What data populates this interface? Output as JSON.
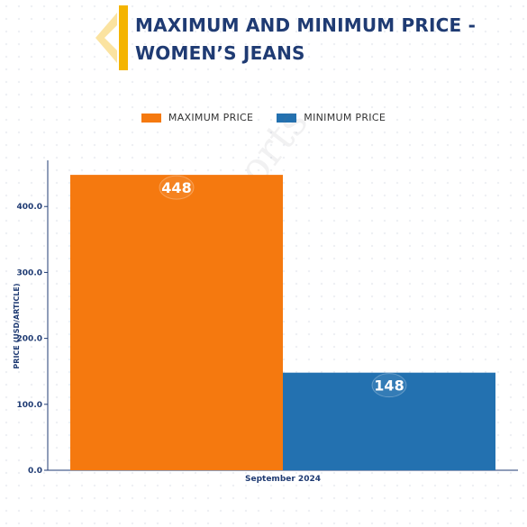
{
  "header": {
    "title_line1": "MAXIMUM AND MINIMUM PRICE -",
    "title_line2": "WOMEN’S JEANS",
    "logo_icon": "chevron-logo-icon"
  },
  "watermark": "D&J Reports",
  "colors": {
    "max": "#f5790f",
    "min": "#2371b0",
    "title": "#1f3b73",
    "axis": "#1f3b73",
    "logo_dark": "#f4b400",
    "logo_light": "#fbe3a0"
  },
  "chart_data": {
    "type": "bar",
    "title": "MAXIMUM AND MINIMUM PRICE - WOMEN’S JEANS",
    "categories": [
      "September 2024"
    ],
    "series": [
      {
        "name": "MAXIMUM PRICE",
        "values": [
          448
        ]
      },
      {
        "name": "MINIMUM PRICE",
        "values": [
          148
        ]
      }
    ],
    "data_labels": [
      "448",
      "148"
    ],
    "xlabel": "",
    "ylabel": "PRICE (USD/ARTICLE)",
    "ylim": [
      0,
      470
    ],
    "yticks": [
      "0.0",
      "100.0",
      "200.0",
      "300.0",
      "400.0"
    ],
    "ytick_values": [
      0,
      100,
      200,
      300,
      400
    ],
    "grid": false,
    "legend": "top-center"
  }
}
